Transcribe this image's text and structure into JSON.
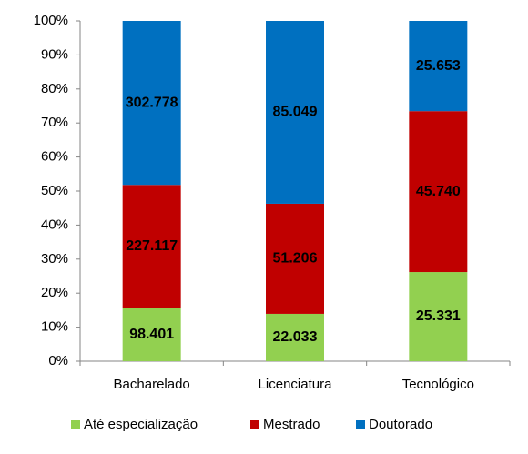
{
  "chart_data": {
    "type": "bar",
    "stacking": "percent",
    "categories": [
      "Bacharelado",
      "Licenciatura",
      "Tecnológico"
    ],
    "series": [
      {
        "name": "Até especialização",
        "color": "#92d050",
        "values": [
          98401,
          22033,
          25331
        ],
        "value_labels": [
          "98.401",
          "22.033",
          "25.331"
        ]
      },
      {
        "name": "Mestrado",
        "color": "#c00000",
        "values": [
          227117,
          51206,
          45740
        ],
        "value_labels": [
          "227.117",
          "51.206",
          "45.740"
        ]
      },
      {
        "name": "Doutorado",
        "color": "#0070c0",
        "values": [
          302778,
          85049,
          25653
        ],
        "value_labels": [
          "302.778",
          "85.049",
          "25.653"
        ]
      }
    ],
    "ylim": [
      0,
      100
    ],
    "yticks": [
      {
        "value": 0,
        "label": "0%"
      },
      {
        "value": 10,
        "label": "10%"
      },
      {
        "value": 20,
        "label": "20%"
      },
      {
        "value": 30,
        "label": "30%"
      },
      {
        "value": 40,
        "label": "40%"
      },
      {
        "value": 50,
        "label": "50%"
      },
      {
        "value": 60,
        "label": "60%"
      },
      {
        "value": 70,
        "label": "70%"
      },
      {
        "value": 80,
        "label": "80%"
      },
      {
        "value": 90,
        "label": "90%"
      },
      {
        "value": 100,
        "label": "100%"
      }
    ],
    "grid": false,
    "legend": "bottom"
  }
}
